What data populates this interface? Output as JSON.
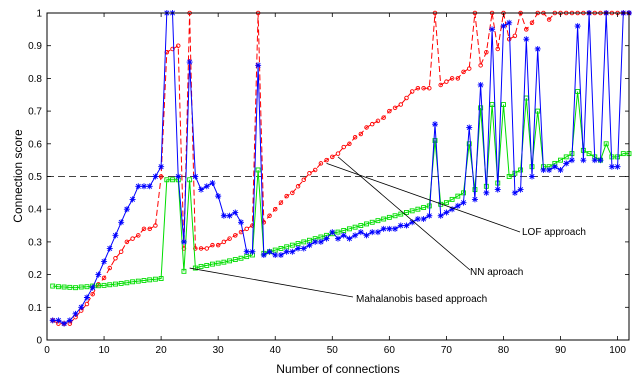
{
  "chart_data": {
    "type": "line",
    "title": "",
    "xlabel": "Number of connections",
    "ylabel": "Connection score",
    "xlim": [
      0,
      102
    ],
    "ylim": [
      0,
      1
    ],
    "xticks": [
      0,
      10,
      20,
      30,
      40,
      50,
      60,
      70,
      80,
      90,
      100
    ],
    "yticks": [
      0,
      0.1,
      0.2,
      0.3,
      0.4,
      0.5,
      0.6,
      0.7,
      0.8,
      0.9,
      1
    ],
    "grid": false,
    "threshold": 0.5,
    "annotations": [
      {
        "text": "LOF approach",
        "series": "LOF",
        "at": [
          49,
          0.54
        ]
      },
      {
        "text": "NN aproach",
        "series": "NN",
        "at": [
          51,
          0.56
        ]
      },
      {
        "text": "Mahalanobis based approach",
        "series": "Mahalanobis",
        "at": [
          25,
          0.22
        ]
      }
    ],
    "series": [
      {
        "key": "LOF",
        "color": "#0000ff",
        "marker": "asterisk",
        "linestyle": "solid",
        "x": [
          1,
          2,
          3,
          4,
          5,
          6,
          7,
          8,
          9,
          10,
          11,
          12,
          13,
          14,
          15,
          16,
          17,
          18,
          19,
          20,
          21,
          22,
          23,
          24,
          25,
          26,
          27,
          28,
          29,
          30,
          31,
          32,
          33,
          34,
          35,
          36,
          37,
          38,
          39,
          40,
          41,
          42,
          43,
          44,
          45,
          46,
          47,
          48,
          49,
          50,
          51,
          52,
          53,
          54,
          55,
          56,
          57,
          58,
          59,
          60,
          61,
          62,
          63,
          64,
          65,
          66,
          67,
          68,
          69,
          70,
          71,
          72,
          73,
          74,
          75,
          76,
          77,
          78,
          79,
          80,
          81,
          82,
          83,
          84,
          85,
          86,
          87,
          88,
          89,
          90,
          91,
          92,
          93,
          94,
          95,
          96,
          97,
          98,
          99,
          100,
          101,
          102
        ],
        "y": [
          0.06,
          0.06,
          0.05,
          0.06,
          0.08,
          0.1,
          0.13,
          0.16,
          0.2,
          0.24,
          0.28,
          0.32,
          0.36,
          0.4,
          0.43,
          0.47,
          0.47,
          0.47,
          0.5,
          0.53,
          1.0,
          1.0,
          0.5,
          0.3,
          0.85,
          0.5,
          0.46,
          0.47,
          0.48,
          0.44,
          0.38,
          0.38,
          0.39,
          0.36,
          0.27,
          0.27,
          0.84,
          0.26,
          0.27,
          0.26,
          0.26,
          0.27,
          0.27,
          0.28,
          0.28,
          0.29,
          0.3,
          0.3,
          0.31,
          0.33,
          0.31,
          0.32,
          0.31,
          0.32,
          0.33,
          0.32,
          0.33,
          0.33,
          0.34,
          0.34,
          0.34,
          0.35,
          0.35,
          0.36,
          0.37,
          0.37,
          0.38,
          0.66,
          0.38,
          0.39,
          0.4,
          0.41,
          0.42,
          0.65,
          0.43,
          0.78,
          0.45,
          0.95,
          0.46,
          0.96,
          0.97,
          0.45,
          0.46,
          0.92,
          0.5,
          0.89,
          0.52,
          0.52,
          0.53,
          0.52,
          0.54,
          0.55,
          0.96,
          0.55,
          1.0,
          0.55,
          0.55,
          1.0,
          0.53,
          0.53,
          1.0,
          1.0
        ]
      },
      {
        "key": "NN",
        "color": "#ff0000",
        "marker": "circle",
        "linestyle": "dashed",
        "x": [
          1,
          2,
          3,
          4,
          5,
          6,
          7,
          8,
          9,
          10,
          11,
          12,
          13,
          14,
          15,
          16,
          17,
          18,
          19,
          20,
          21,
          22,
          23,
          24,
          25,
          26,
          27,
          28,
          29,
          30,
          31,
          32,
          33,
          34,
          35,
          36,
          37,
          38,
          39,
          40,
          41,
          42,
          43,
          44,
          45,
          46,
          47,
          48,
          49,
          50,
          51,
          52,
          53,
          54,
          55,
          56,
          57,
          58,
          59,
          60,
          61,
          62,
          63,
          64,
          65,
          66,
          67,
          68,
          69,
          70,
          71,
          72,
          73,
          74,
          75,
          76,
          77,
          78,
          79,
          80,
          81,
          82,
          83,
          84,
          85,
          86,
          87,
          88,
          89,
          90,
          91,
          92,
          93,
          94,
          95,
          96,
          97,
          98,
          99,
          100,
          101,
          102
        ],
        "y": [
          0.06,
          0.05,
          0.05,
          0.05,
          0.07,
          0.09,
          0.11,
          0.14,
          0.17,
          0.19,
          0.22,
          0.25,
          0.27,
          0.3,
          0.31,
          0.32,
          0.34,
          0.34,
          0.35,
          0.5,
          0.88,
          0.89,
          0.9,
          0.28,
          1.0,
          0.28,
          0.28,
          0.28,
          0.29,
          0.29,
          0.3,
          0.31,
          0.32,
          0.33,
          0.34,
          0.35,
          1.0,
          0.36,
          0.38,
          0.4,
          0.42,
          0.44,
          0.45,
          0.47,
          0.49,
          0.51,
          0.52,
          0.54,
          0.55,
          0.56,
          0.57,
          0.59,
          0.6,
          0.62,
          0.63,
          0.65,
          0.66,
          0.67,
          0.68,
          0.7,
          0.71,
          0.72,
          0.74,
          0.76,
          0.77,
          0.77,
          0.77,
          1.0,
          0.78,
          0.79,
          0.8,
          0.8,
          0.82,
          0.83,
          1.0,
          0.84,
          0.88,
          1.0,
          0.89,
          1.0,
          0.92,
          0.93,
          1.0,
          0.95,
          0.97,
          1.0,
          1.0,
          0.98,
          1.0,
          1.0,
          1.0,
          1.0,
          1.0,
          1.0,
          1.0,
          1.0,
          1.0,
          1.0,
          1.0,
          1.0,
          1.0,
          1.0
        ]
      },
      {
        "key": "Mahalanobis",
        "color": "#00dd00",
        "marker": "square",
        "linestyle": "solid",
        "x": [
          1,
          2,
          3,
          4,
          5,
          6,
          7,
          8,
          9,
          10,
          11,
          12,
          13,
          14,
          15,
          16,
          17,
          18,
          19,
          20,
          21,
          22,
          23,
          24,
          25,
          26,
          27,
          28,
          29,
          30,
          31,
          32,
          33,
          34,
          35,
          36,
          37,
          38,
          39,
          40,
          41,
          42,
          43,
          44,
          45,
          46,
          47,
          48,
          49,
          50,
          51,
          52,
          53,
          54,
          55,
          56,
          57,
          58,
          59,
          60,
          61,
          62,
          63,
          64,
          65,
          66,
          67,
          68,
          69,
          70,
          71,
          72,
          73,
          74,
          75,
          76,
          77,
          78,
          79,
          80,
          81,
          82,
          83,
          84,
          85,
          86,
          87,
          88,
          89,
          90,
          91,
          92,
          93,
          94,
          95,
          96,
          97,
          98,
          99,
          100,
          101,
          102
        ],
        "y": [
          0.165,
          0.163,
          0.162,
          0.161,
          0.16,
          0.162,
          0.163,
          0.165,
          0.166,
          0.167,
          0.169,
          0.171,
          0.173,
          0.175,
          0.178,
          0.18,
          0.182,
          0.184,
          0.186,
          0.188,
          0.49,
          0.49,
          0.49,
          0.21,
          0.49,
          0.22,
          0.225,
          0.228,
          0.232,
          0.235,
          0.238,
          0.242,
          0.246,
          0.25,
          0.255,
          0.26,
          0.52,
          0.265,
          0.27,
          0.275,
          0.28,
          0.285,
          0.29,
          0.295,
          0.3,
          0.305,
          0.31,
          0.315,
          0.32,
          0.325,
          0.33,
          0.335,
          0.34,
          0.345,
          0.35,
          0.355,
          0.36,
          0.365,
          0.37,
          0.375,
          0.38,
          0.385,
          0.39,
          0.395,
          0.4,
          0.405,
          0.41,
          0.61,
          0.415,
          0.42,
          0.43,
          0.44,
          0.45,
          0.6,
          0.46,
          0.71,
          0.47,
          0.72,
          0.48,
          0.72,
          0.5,
          0.51,
          0.52,
          0.74,
          0.53,
          0.7,
          0.53,
          0.53,
          0.54,
          0.55,
          0.56,
          0.57,
          0.76,
          0.58,
          0.57,
          0.56,
          0.55,
          0.6,
          0.56,
          0.56,
          0.57,
          0.57
        ]
      }
    ]
  }
}
